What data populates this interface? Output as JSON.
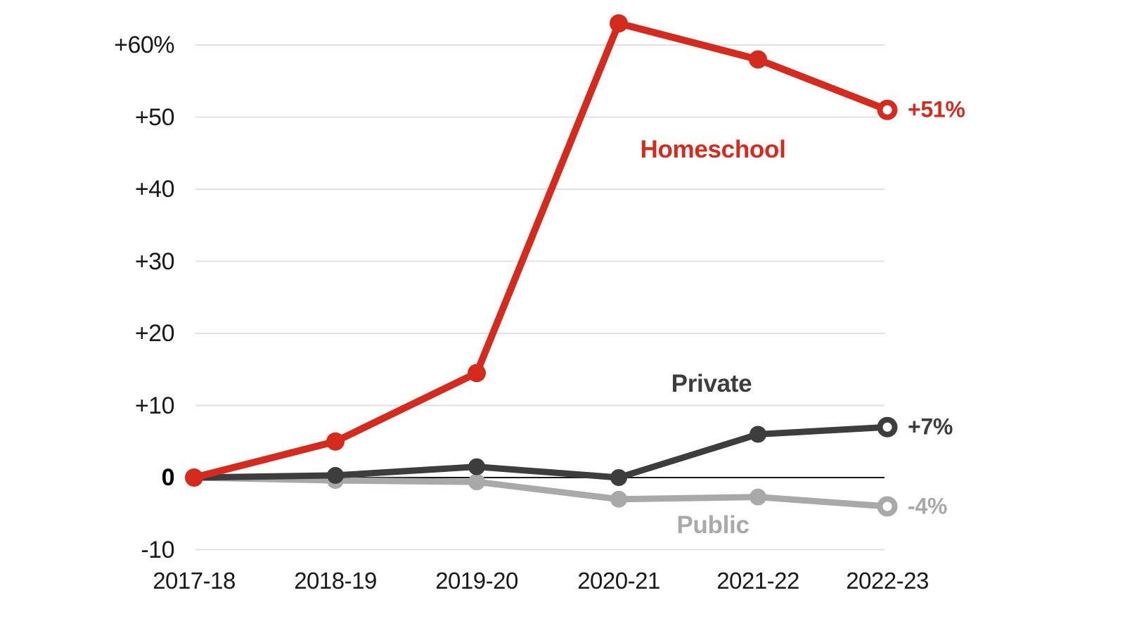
{
  "chart_data": {
    "type": "line",
    "title": "",
    "xlabel": "",
    "ylabel": "",
    "categories": [
      "2017-18",
      "2018-19",
      "2019-20",
      "2020-21",
      "2021-22",
      "2022-23"
    ],
    "series": [
      {
        "name": "Homeschool",
        "color": "#d42b1e",
        "values": [
          0,
          5,
          14.5,
          63,
          58,
          51
        ],
        "end_label": "+51%"
      },
      {
        "name": "Private",
        "color": "#3d3d3d",
        "values": [
          0,
          0.3,
          1.5,
          0,
          6,
          7
        ],
        "end_label": "+7%"
      },
      {
        "name": "Public",
        "color": "#a9a9a9",
        "values": [
          0,
          -0.4,
          -0.6,
          -3,
          -2.7,
          -4
        ],
        "end_label": "-4%"
      }
    ],
    "y_ticks": [
      {
        "label": "+60%",
        "value": 60
      },
      {
        "label": "+50",
        "value": 50
      },
      {
        "label": "+40",
        "value": 40
      },
      {
        "label": "+30",
        "value": 30
      },
      {
        "label": "+20",
        "value": 20
      },
      {
        "label": "+10",
        "value": 10
      },
      {
        "label": "0",
        "value": 0
      },
      {
        "label": "-10",
        "value": -10
      }
    ],
    "ylim": [
      -10,
      65
    ],
    "grid": true,
    "legend": "inline-labels",
    "colors": {
      "gridline": "#e1e1e1",
      "zero_line": "#1a1a1a",
      "axis_text": "#191919",
      "background": "#ffffff"
    }
  }
}
